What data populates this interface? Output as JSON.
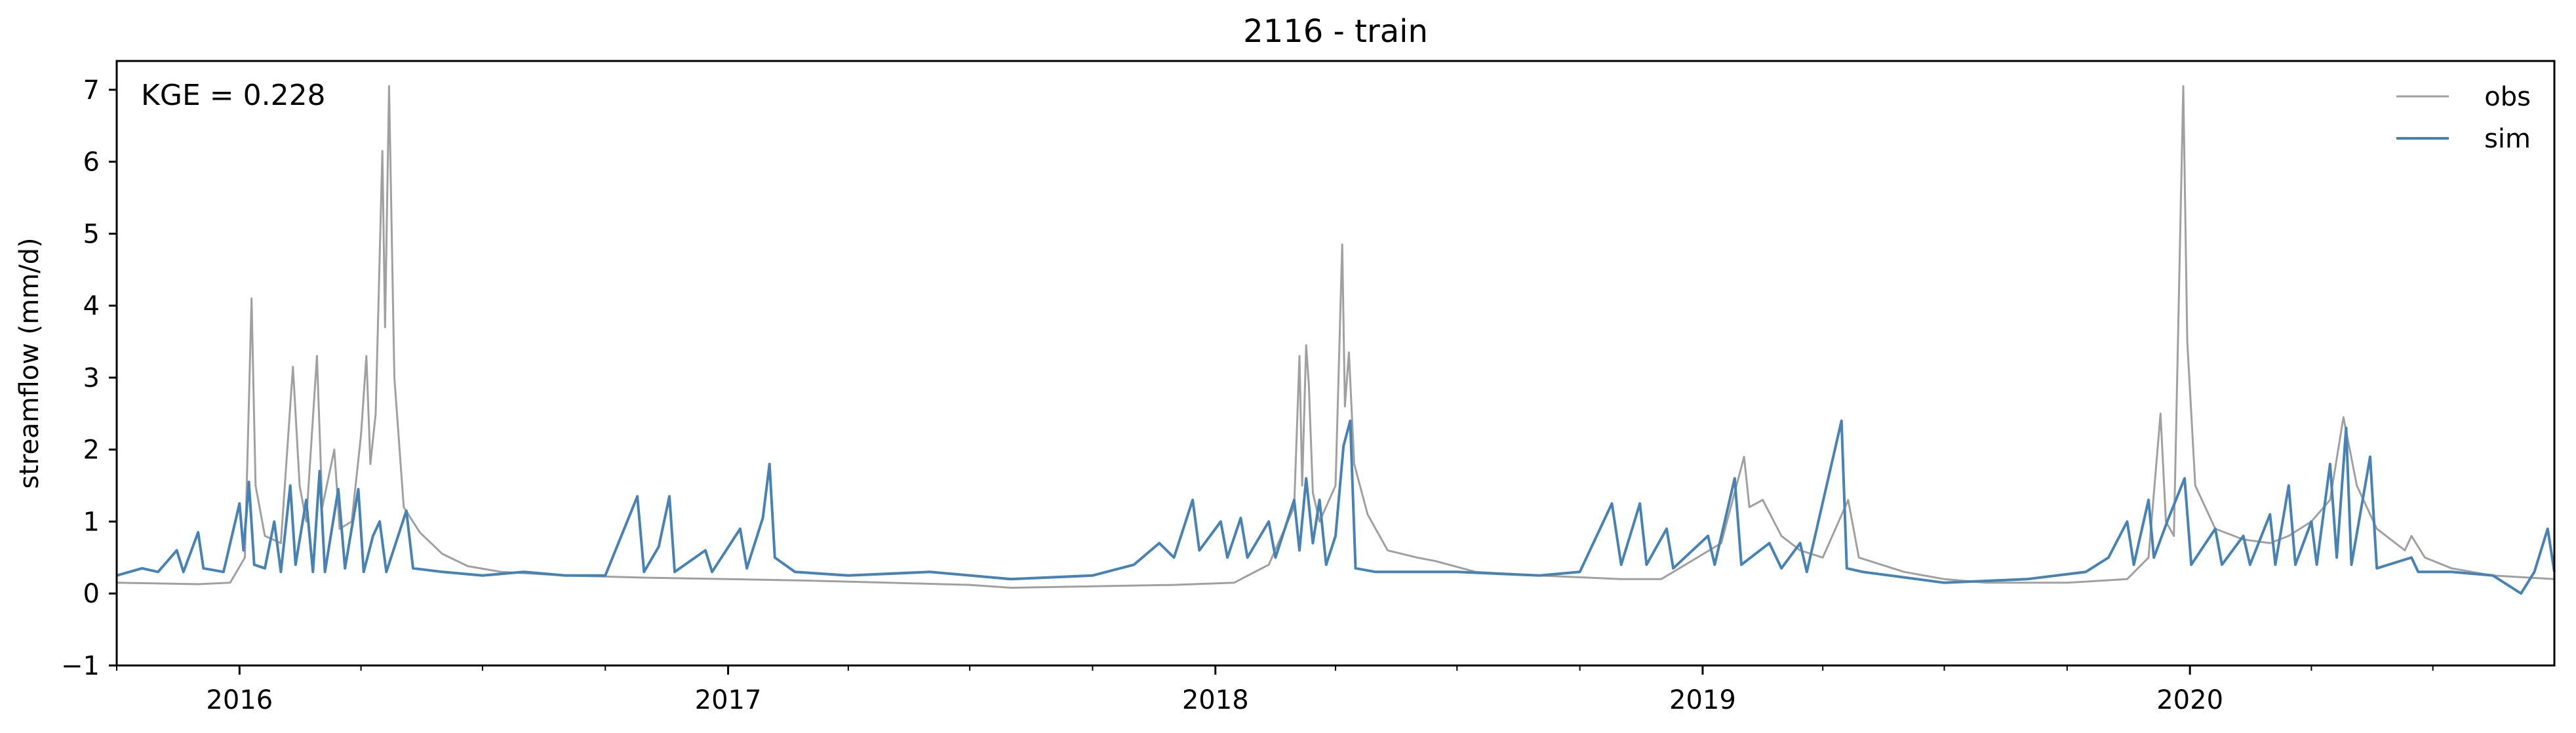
{
  "chart_data": {
    "type": "line",
    "title": "2116 - train",
    "ylabel": "streamflow (mm/d)",
    "xlabel": "",
    "annotation": "KGE = 0.228",
    "xlim": [
      "2015-10-01",
      "2020-09-30"
    ],
    "ylim": [
      -1,
      7.4
    ],
    "yticks": [
      -1,
      0,
      1,
      2,
      3,
      4,
      5,
      6,
      7
    ],
    "xticks": [
      {
        "date": "2016-01-01",
        "label": "2016"
      },
      {
        "date": "2017-01-01",
        "label": "2017"
      },
      {
        "date": "2018-01-01",
        "label": "2018"
      },
      {
        "date": "2019-01-01",
        "label": "2019"
      },
      {
        "date": "2020-01-01",
        "label": "2020"
      }
    ],
    "grid": false,
    "legend_position": "top-right",
    "series": [
      {
        "name": "obs",
        "color": "#a0a0a0",
        "points": [
          [
            "2015-10-01",
            0.15
          ],
          [
            "2015-11-01",
            0.14
          ],
          [
            "2015-12-01",
            0.13
          ],
          [
            "2015-12-25",
            0.15
          ],
          [
            "2016-01-05",
            0.5
          ],
          [
            "2016-01-10",
            4.1
          ],
          [
            "2016-01-13",
            1.5
          ],
          [
            "2016-01-20",
            0.8
          ],
          [
            "2016-02-01",
            0.7
          ],
          [
            "2016-02-10",
            3.15
          ],
          [
            "2016-02-15",
            1.5
          ],
          [
            "2016-02-20",
            1.0
          ],
          [
            "2016-02-28",
            3.3
          ],
          [
            "2016-03-03",
            1.2
          ],
          [
            "2016-03-12",
            2.0
          ],
          [
            "2016-03-16",
            0.9
          ],
          [
            "2016-03-25",
            1.0
          ],
          [
            "2016-04-01",
            2.2
          ],
          [
            "2016-04-05",
            3.3
          ],
          [
            "2016-04-08",
            1.8
          ],
          [
            "2016-04-12",
            2.5
          ],
          [
            "2016-04-17",
            6.15
          ],
          [
            "2016-04-19",
            3.7
          ],
          [
            "2016-04-22",
            7.05
          ],
          [
            "2016-04-26",
            3.0
          ],
          [
            "2016-05-03",
            1.2
          ],
          [
            "2016-05-15",
            0.85
          ],
          [
            "2016-06-01",
            0.55
          ],
          [
            "2016-06-20",
            0.38
          ],
          [
            "2016-07-15",
            0.3
          ],
          [
            "2016-09-01",
            0.25
          ],
          [
            "2016-11-01",
            0.22
          ],
          [
            "2017-01-01",
            0.2
          ],
          [
            "2017-03-01",
            0.18
          ],
          [
            "2017-05-01",
            0.15
          ],
          [
            "2017-07-01",
            0.12
          ],
          [
            "2017-08-01",
            0.08
          ],
          [
            "2017-10-01",
            0.1
          ],
          [
            "2017-12-01",
            0.12
          ],
          [
            "2018-01-15",
            0.15
          ],
          [
            "2018-02-10",
            0.4
          ],
          [
            "2018-03-01",
            1.2
          ],
          [
            "2018-03-05",
            3.3
          ],
          [
            "2018-03-07",
            1.5
          ],
          [
            "2018-03-10",
            3.45
          ],
          [
            "2018-03-12",
            2.9
          ],
          [
            "2018-03-15",
            1.4
          ],
          [
            "2018-03-20",
            1.0
          ],
          [
            "2018-04-01",
            1.5
          ],
          [
            "2018-04-06",
            4.85
          ],
          [
            "2018-04-08",
            2.6
          ],
          [
            "2018-04-11",
            3.35
          ],
          [
            "2018-04-15",
            1.8
          ],
          [
            "2018-04-25",
            1.1
          ],
          [
            "2018-05-10",
            0.6
          ],
          [
            "2018-06-01",
            0.5
          ],
          [
            "2018-06-15",
            0.45
          ],
          [
            "2018-07-15",
            0.3
          ],
          [
            "2018-09-01",
            0.25
          ],
          [
            "2018-11-01",
            0.2
          ],
          [
            "2018-12-01",
            0.2
          ],
          [
            "2019-01-15",
            0.7
          ],
          [
            "2019-02-01",
            1.9
          ],
          [
            "2019-02-05",
            1.2
          ],
          [
            "2019-02-15",
            1.3
          ],
          [
            "2019-03-01",
            0.8
          ],
          [
            "2019-03-15",
            0.6
          ],
          [
            "2019-04-01",
            0.5
          ],
          [
            "2019-04-20",
            1.3
          ],
          [
            "2019-04-28",
            0.5
          ],
          [
            "2019-06-01",
            0.3
          ],
          [
            "2019-07-01",
            0.2
          ],
          [
            "2019-08-01",
            0.15
          ],
          [
            "2019-10-01",
            0.15
          ],
          [
            "2019-11-15",
            0.2
          ],
          [
            "2019-12-01",
            0.5
          ],
          [
            "2019-12-10",
            2.5
          ],
          [
            "2019-12-14",
            1.0
          ],
          [
            "2019-12-20",
            0.8
          ],
          [
            "2019-12-27",
            7.05
          ],
          [
            "2019-12-30",
            3.5
          ],
          [
            "2020-01-05",
            1.5
          ],
          [
            "2020-01-20",
            0.9
          ],
          [
            "2020-02-10",
            0.75
          ],
          [
            "2020-03-01",
            0.7
          ],
          [
            "2020-03-15",
            0.8
          ],
          [
            "2020-04-01",
            1.0
          ],
          [
            "2020-04-15",
            1.3
          ],
          [
            "2020-04-25",
            2.45
          ],
          [
            "2020-05-05",
            1.5
          ],
          [
            "2020-05-20",
            0.9
          ],
          [
            "2020-06-10",
            0.6
          ],
          [
            "2020-06-15",
            0.8
          ],
          [
            "2020-06-25",
            0.5
          ],
          [
            "2020-07-15",
            0.35
          ],
          [
            "2020-08-15",
            0.25
          ],
          [
            "2020-09-30",
            0.2
          ]
        ]
      },
      {
        "name": "sim",
        "color": "#4682b4",
        "points": [
          [
            "2015-10-01",
            0.25
          ],
          [
            "2015-10-20",
            0.35
          ],
          [
            "2015-11-01",
            0.3
          ],
          [
            "2015-11-15",
            0.6
          ],
          [
            "2015-11-20",
            0.3
          ],
          [
            "2015-12-01",
            0.85
          ],
          [
            "2015-12-05",
            0.35
          ],
          [
            "2015-12-20",
            0.3
          ],
          [
            "2016-01-01",
            1.25
          ],
          [
            "2016-01-04",
            0.6
          ],
          [
            "2016-01-08",
            1.55
          ],
          [
            "2016-01-12",
            0.4
          ],
          [
            "2016-01-20",
            0.35
          ],
          [
            "2016-01-27",
            1.0
          ],
          [
            "2016-02-01",
            0.3
          ],
          [
            "2016-02-08",
            1.5
          ],
          [
            "2016-02-12",
            0.4
          ],
          [
            "2016-02-20",
            1.3
          ],
          [
            "2016-02-25",
            0.3
          ],
          [
            "2016-03-01",
            1.7
          ],
          [
            "2016-03-05",
            0.3
          ],
          [
            "2016-03-15",
            1.45
          ],
          [
            "2016-03-20",
            0.35
          ],
          [
            "2016-03-30",
            1.45
          ],
          [
            "2016-04-03",
            0.3
          ],
          [
            "2016-04-10",
            0.8
          ],
          [
            "2016-04-15",
            1.0
          ],
          [
            "2016-04-20",
            0.3
          ],
          [
            "2016-05-05",
            1.15
          ],
          [
            "2016-05-10",
            0.35
          ],
          [
            "2016-06-01",
            0.3
          ],
          [
            "2016-07-01",
            0.25
          ],
          [
            "2016-08-01",
            0.3
          ],
          [
            "2016-09-01",
            0.25
          ],
          [
            "2016-10-01",
            0.25
          ],
          [
            "2016-10-25",
            1.35
          ],
          [
            "2016-10-30",
            0.3
          ],
          [
            "2016-11-10",
            0.65
          ],
          [
            "2016-11-18",
            1.35
          ],
          [
            "2016-11-22",
            0.3
          ],
          [
            "2016-12-15",
            0.6
          ],
          [
            "2016-12-20",
            0.3
          ],
          [
            "2017-01-10",
            0.9
          ],
          [
            "2017-01-15",
            0.35
          ],
          [
            "2017-01-27",
            1.05
          ],
          [
            "2017-02-01",
            1.8
          ],
          [
            "2017-02-05",
            0.5
          ],
          [
            "2017-02-20",
            0.3
          ],
          [
            "2017-04-01",
            0.25
          ],
          [
            "2017-06-01",
            0.3
          ],
          [
            "2017-08-01",
            0.2
          ],
          [
            "2017-10-01",
            0.25
          ],
          [
            "2017-11-01",
            0.4
          ],
          [
            "2017-11-20",
            0.7
          ],
          [
            "2017-12-01",
            0.5
          ],
          [
            "2017-12-15",
            1.3
          ],
          [
            "2017-12-20",
            0.6
          ],
          [
            "2018-01-05",
            1.0
          ],
          [
            "2018-01-10",
            0.5
          ],
          [
            "2018-01-20",
            1.05
          ],
          [
            "2018-01-25",
            0.5
          ],
          [
            "2018-02-10",
            1.0
          ],
          [
            "2018-02-15",
            0.5
          ],
          [
            "2018-03-01",
            1.3
          ],
          [
            "2018-03-05",
            0.6
          ],
          [
            "2018-03-10",
            1.6
          ],
          [
            "2018-03-15",
            0.7
          ],
          [
            "2018-03-20",
            1.3
          ],
          [
            "2018-03-25",
            0.4
          ],
          [
            "2018-04-01",
            0.8
          ],
          [
            "2018-04-07",
            2.05
          ],
          [
            "2018-04-12",
            2.4
          ],
          [
            "2018-04-16",
            0.35
          ],
          [
            "2018-05-01",
            0.3
          ],
          [
            "2018-07-01",
            0.3
          ],
          [
            "2018-09-01",
            0.25
          ],
          [
            "2018-10-01",
            0.3
          ],
          [
            "2018-10-25",
            1.25
          ],
          [
            "2018-11-01",
            0.4
          ],
          [
            "2018-11-15",
            1.25
          ],
          [
            "2018-11-20",
            0.4
          ],
          [
            "2018-12-05",
            0.9
          ],
          [
            "2018-12-10",
            0.35
          ],
          [
            "2019-01-05",
            0.8
          ],
          [
            "2019-01-10",
            0.4
          ],
          [
            "2019-01-25",
            1.6
          ],
          [
            "2019-01-30",
            0.4
          ],
          [
            "2019-02-20",
            0.7
          ],
          [
            "2019-03-01",
            0.35
          ],
          [
            "2019-03-15",
            0.7
          ],
          [
            "2019-03-20",
            0.3
          ],
          [
            "2019-04-15",
            2.4
          ],
          [
            "2019-04-19",
            0.35
          ],
          [
            "2019-05-01",
            0.3
          ],
          [
            "2019-07-01",
            0.15
          ],
          [
            "2019-09-01",
            0.2
          ],
          [
            "2019-10-15",
            0.3
          ],
          [
            "2019-11-01",
            0.5
          ],
          [
            "2019-11-15",
            1.0
          ],
          [
            "2019-11-20",
            0.4
          ],
          [
            "2019-12-01",
            1.3
          ],
          [
            "2019-12-05",
            0.5
          ],
          [
            "2019-12-15",
            1.0
          ],
          [
            "2019-12-28",
            1.6
          ],
          [
            "2020-01-02",
            0.4
          ],
          [
            "2020-01-20",
            0.9
          ],
          [
            "2020-01-25",
            0.4
          ],
          [
            "2020-02-10",
            0.8
          ],
          [
            "2020-02-15",
            0.4
          ],
          [
            "2020-03-01",
            1.1
          ],
          [
            "2020-03-05",
            0.4
          ],
          [
            "2020-03-15",
            1.5
          ],
          [
            "2020-03-20",
            0.4
          ],
          [
            "2020-04-01",
            1.0
          ],
          [
            "2020-04-05",
            0.4
          ],
          [
            "2020-04-15",
            1.8
          ],
          [
            "2020-04-20",
            0.5
          ],
          [
            "2020-04-27",
            2.3
          ],
          [
            "2020-05-01",
            0.4
          ],
          [
            "2020-05-15",
            1.9
          ],
          [
            "2020-05-20",
            0.35
          ],
          [
            "2020-06-15",
            0.5
          ],
          [
            "2020-06-20",
            0.3
          ],
          [
            "2020-07-15",
            0.3
          ],
          [
            "2020-08-15",
            0.25
          ],
          [
            "2020-09-05",
            0.0
          ],
          [
            "2020-09-15",
            0.3
          ],
          [
            "2020-09-25",
            0.9
          ],
          [
            "2020-09-30",
            0.3
          ]
        ]
      }
    ]
  }
}
